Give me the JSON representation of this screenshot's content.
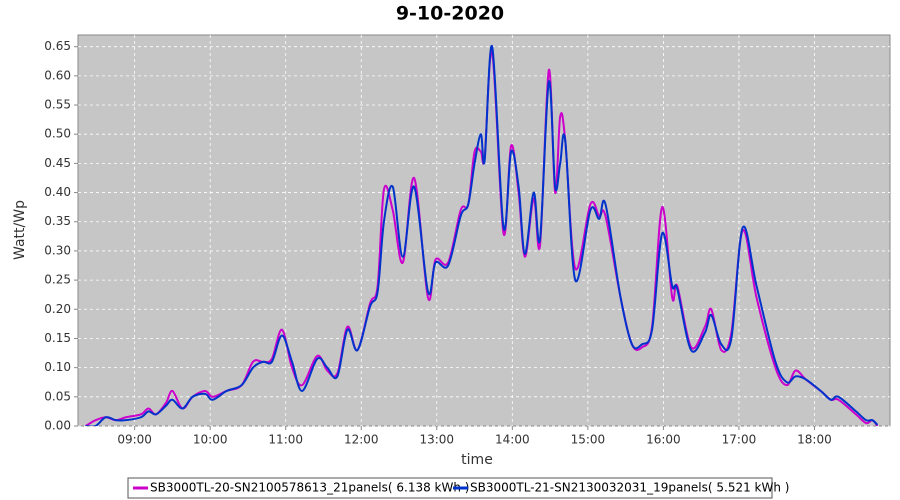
{
  "chart_data": {
    "type": "line",
    "title": "9-10-2020",
    "x_label": "time",
    "y_label": "Watt/Wp",
    "x": [
      "08:21",
      "08:29",
      "08:37",
      "08:45",
      "08:53",
      "09:05",
      "09:11",
      "09:17",
      "09:25",
      "09:30",
      "09:38",
      "09:46",
      "09:56",
      "10:02",
      "10:13",
      "10:25",
      "10:34",
      "10:42",
      "10:49",
      "10:57",
      "11:05",
      "11:13",
      "11:25",
      "11:33",
      "11:41",
      "11:49",
      "11:57",
      "12:07",
      "12:13",
      "12:18",
      "12:25",
      "12:33",
      "12:42",
      "12:53",
      "12:59",
      "13:09",
      "13:19",
      "13:25",
      "13:30",
      "13:35",
      "13:38",
      "13:44",
      "13:53",
      "13:59",
      "14:05",
      "14:10",
      "14:17",
      "14:22",
      "14:29",
      "14:34",
      "14:38",
      "14:42",
      "14:50",
      "15:02",
      "15:09",
      "15:14",
      "15:26",
      "15:35",
      "15:43",
      "15:51",
      "15:59",
      "16:07",
      "16:11",
      "16:22",
      "16:33",
      "16:38",
      "16:46",
      "16:54",
      "17:03",
      "17:14",
      "17:29",
      "17:38",
      "17:45",
      "17:53",
      "18:05",
      "18:13",
      "18:19",
      "18:33",
      "18:41",
      "18:46",
      "18:50"
    ],
    "series": [
      {
        "name": "SB3000TL-20-SN2100578613_21panels( 6.138 kWh )",
        "color": "#cc00cc",
        "values": [
          0,
          0.01,
          0.015,
          0.01,
          0.015,
          0.02,
          0.03,
          0.02,
          0.04,
          0.06,
          0.03,
          0.05,
          0.06,
          0.05,
          0.06,
          0.07,
          0.11,
          0.11,
          0.115,
          0.165,
          0.1,
          0.07,
          0.12,
          0.095,
          0.09,
          0.17,
          0.13,
          0.21,
          0.24,
          0.405,
          0.37,
          0.28,
          0.425,
          0.22,
          0.285,
          0.28,
          0.37,
          0.38,
          0.47,
          0.47,
          0.46,
          0.64,
          0.33,
          0.48,
          0.4,
          0.29,
          0.39,
          0.31,
          0.61,
          0.4,
          0.53,
          0.49,
          0.27,
          0.38,
          0.36,
          0.36,
          0.22,
          0.14,
          0.135,
          0.17,
          0.375,
          0.22,
          0.24,
          0.135,
          0.17,
          0.2,
          0.13,
          0.16,
          0.335,
          0.22,
          0.1,
          0.07,
          0.095,
          0.08,
          0.06,
          0.045,
          0.045,
          0.02,
          0.005,
          0.01,
          0
        ]
      },
      {
        "name": "SB3000TL-21-SN2130032031_19panels( 5.521 kWh )",
        "color": "#0033cc",
        "values": [
          0,
          0,
          0.015,
          0.01,
          0.01,
          0.015,
          0.025,
          0.02,
          0.035,
          0.045,
          0.03,
          0.05,
          0.055,
          0.045,
          0.06,
          0.07,
          0.1,
          0.11,
          0.11,
          0.155,
          0.11,
          0.06,
          0.115,
          0.1,
          0.085,
          0.165,
          0.13,
          0.205,
          0.23,
          0.35,
          0.41,
          0.29,
          0.41,
          0.23,
          0.28,
          0.275,
          0.36,
          0.38,
          0.45,
          0.5,
          0.455,
          0.65,
          0.34,
          0.47,
          0.41,
          0.295,
          0.4,
          0.32,
          0.59,
          0.41,
          0.45,
          0.49,
          0.25,
          0.37,
          0.355,
          0.38,
          0.22,
          0.14,
          0.14,
          0.165,
          0.33,
          0.24,
          0.235,
          0.13,
          0.16,
          0.19,
          0.14,
          0.15,
          0.34,
          0.24,
          0.11,
          0.075,
          0.085,
          0.08,
          0.06,
          0.045,
          0.05,
          0.025,
          0.01,
          0.01,
          0.002
        ]
      }
    ],
    "xlim": [
      "08:15",
      "19:00"
    ],
    "xticks": [
      "09:00",
      "10:00",
      "11:00",
      "12:00",
      "13:00",
      "14:00",
      "15:00",
      "16:00",
      "17:00",
      "18:00"
    ],
    "ylim": [
      0,
      0.67
    ],
    "yticks": [
      {
        "value": 0,
        "label": "0.00"
      },
      0.05,
      {
        "value": 0.1,
        "label": "0.10"
      },
      0.15,
      {
        "value": 0.2,
        "label": "0.20"
      },
      0.25,
      {
        "value": 0.3,
        "label": "0.30"
      },
      0.35,
      {
        "value": 0.4,
        "label": "0.40"
      },
      0.45,
      {
        "value": 0.5,
        "label": "0.50"
      },
      0.55,
      {
        "value": 0.6,
        "label": "0.60"
      },
      0.65
    ],
    "grid": true,
    "legend": "bottom"
  }
}
